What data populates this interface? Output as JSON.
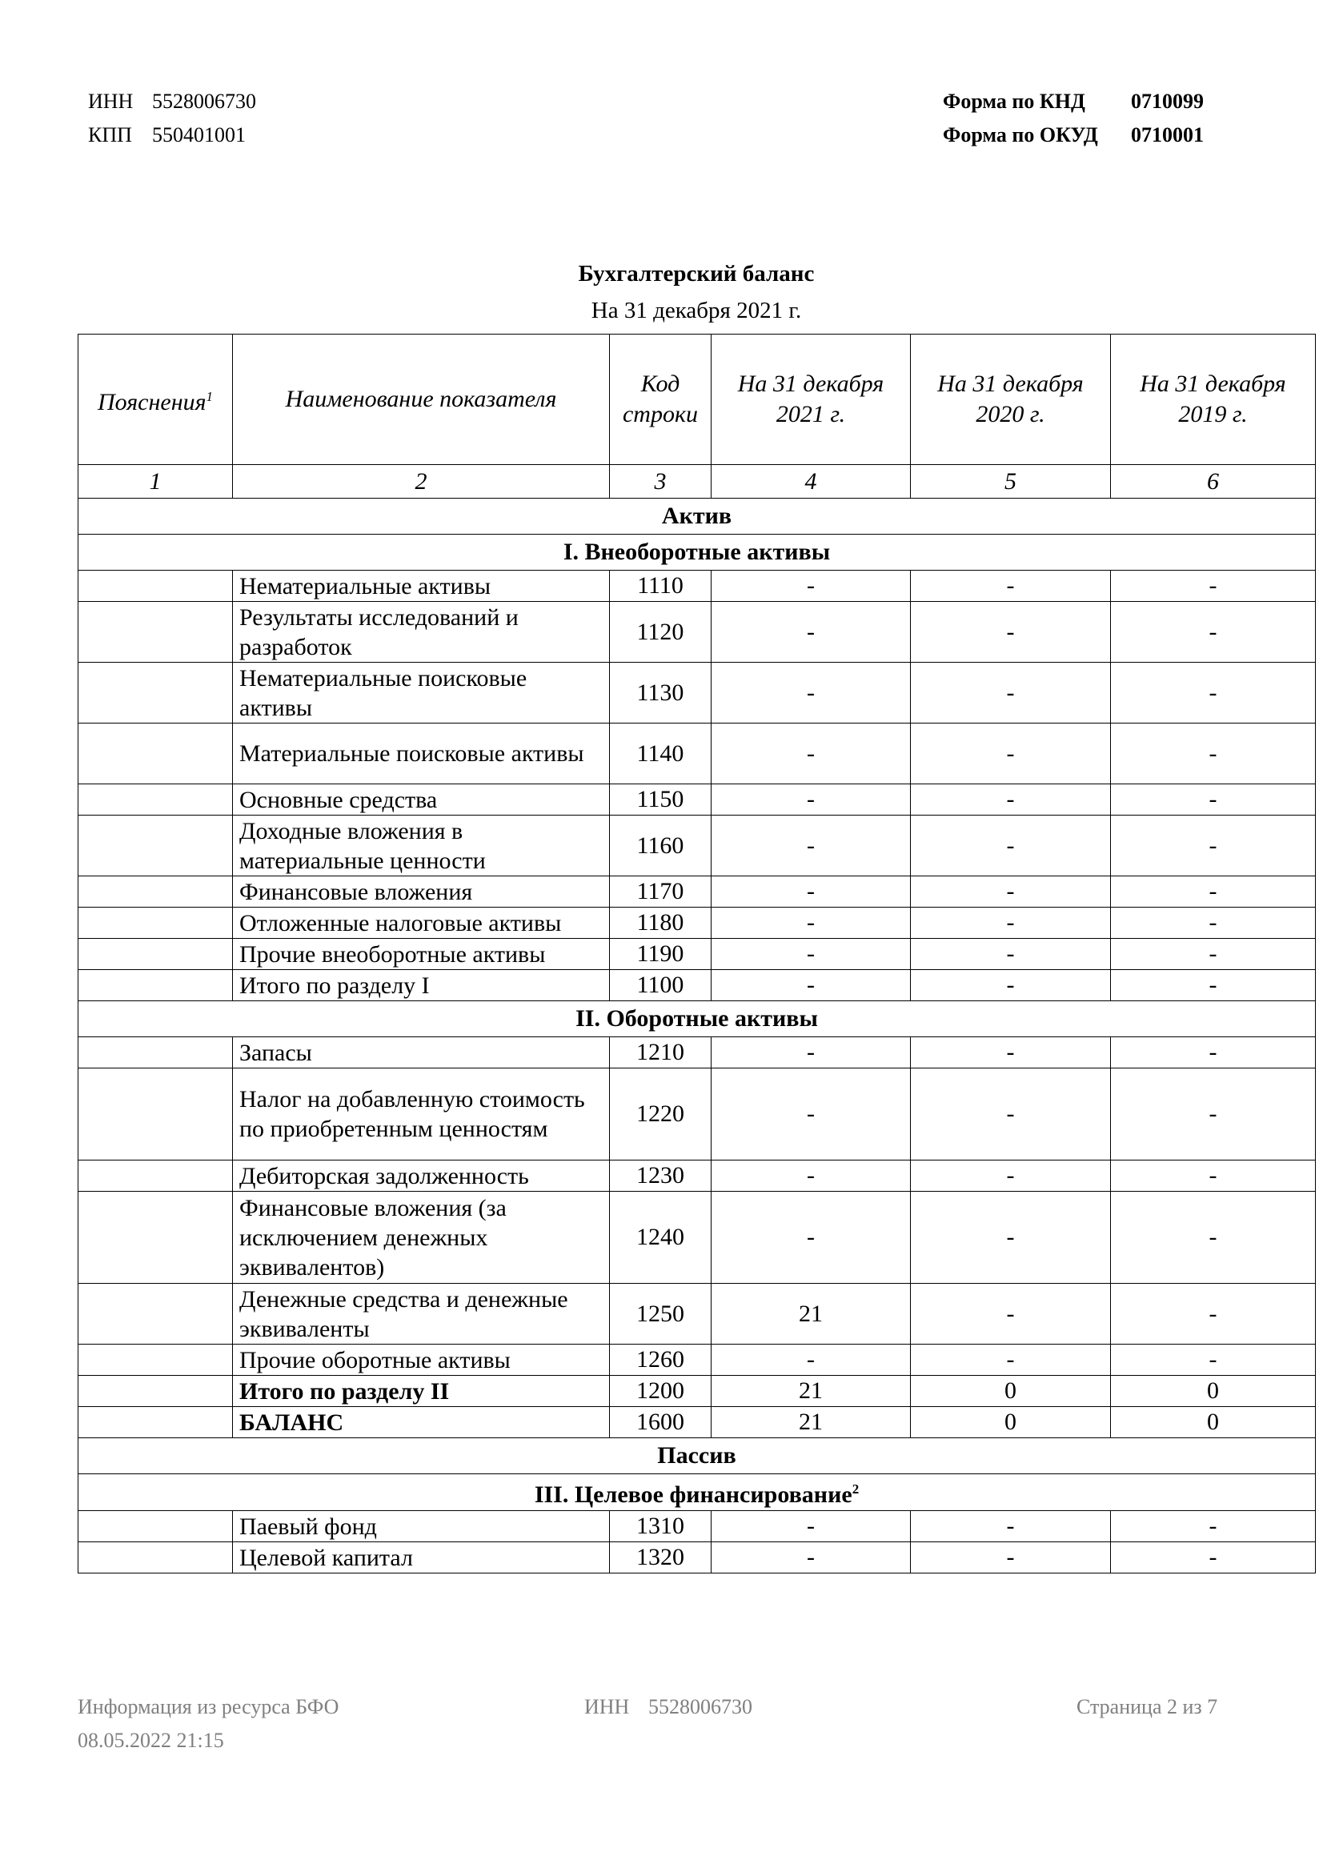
{
  "header": {
    "inn_label": "ИНН",
    "inn": "5528006730",
    "kpp_label": "КПП",
    "kpp": "550401001",
    "knd_label": "Форма по КНД",
    "knd": "0710099",
    "okud_label": "Форма по ОКУД",
    "okud": "0710001"
  },
  "title": "Бухгалтерский баланс",
  "subtitle": "На 31 декабря 2021 г.",
  "table": {
    "columns": [
      "Пояснения",
      "Наименование показателя",
      "Код строки",
      "На 31 декабря 2021 г.",
      "На 31 декабря 2020 г.",
      "На 31 декабря 2019 г."
    ],
    "footnote_mark": "1",
    "column_numbers": [
      "1",
      "2",
      "3",
      "4",
      "5",
      "6"
    ],
    "rows": [
      {
        "type": "section",
        "label": "Актив"
      },
      {
        "type": "section",
        "label": "I. Внеоборотные активы"
      },
      {
        "type": "row",
        "lines": 1,
        "name": "Нематериальные активы",
        "code": "1110",
        "v2021": "-",
        "v2020": "-",
        "v2019": "-"
      },
      {
        "type": "row",
        "lines": 2,
        "name": "Результаты исследований и разработок",
        "code": "1120",
        "v2021": "-",
        "v2020": "-",
        "v2019": "-"
      },
      {
        "type": "row",
        "lines": 2,
        "name": "Нематериальные поисковые активы",
        "code": "1130",
        "v2021": "-",
        "v2020": "-",
        "v2019": "-"
      },
      {
        "type": "row",
        "lines": 2,
        "name": "Материальные поисковые активы",
        "code": "1140",
        "v2021": "-",
        "v2020": "-",
        "v2019": "-"
      },
      {
        "type": "row",
        "lines": 1,
        "name": "Основные средства",
        "code": "1150",
        "v2021": "-",
        "v2020": "-",
        "v2019": "-"
      },
      {
        "type": "row",
        "lines": 2,
        "name": "Доходные вложения в материальные ценности",
        "code": "1160",
        "v2021": "-",
        "v2020": "-",
        "v2019": "-"
      },
      {
        "type": "row",
        "lines": 1,
        "name": "Финансовые вложения",
        "code": "1170",
        "v2021": "-",
        "v2020": "-",
        "v2019": "-"
      },
      {
        "type": "row",
        "lines": 1,
        "name": "Отложенные налоговые активы",
        "code": "1180",
        "v2021": "-",
        "v2020": "-",
        "v2019": "-"
      },
      {
        "type": "row",
        "lines": 1,
        "name": "Прочие внеоборотные активы",
        "code": "1190",
        "v2021": "-",
        "v2020": "-",
        "v2019": "-"
      },
      {
        "type": "row",
        "lines": 1,
        "name": "Итого по разделу I",
        "code": "1100",
        "v2021": "-",
        "v2020": "-",
        "v2019": "-"
      },
      {
        "type": "section",
        "label": "II. Оборотные активы"
      },
      {
        "type": "row",
        "lines": 1,
        "name": "Запасы",
        "code": "1210",
        "v2021": "-",
        "v2020": "-",
        "v2019": "-"
      },
      {
        "type": "row",
        "lines": 3,
        "name": "Налог на добавленную стоимость по приобретенным ценностям",
        "code": "1220",
        "v2021": "-",
        "v2020": "-",
        "v2019": "-"
      },
      {
        "type": "row",
        "lines": 1,
        "name": "Дебиторская задолженность",
        "code": "1230",
        "v2021": "-",
        "v2020": "-",
        "v2019": "-"
      },
      {
        "type": "row",
        "lines": 3,
        "name": "Финансовые вложения (за исключением денежных эквивалентов)",
        "code": "1240",
        "v2021": "-",
        "v2020": "-",
        "v2019": "-"
      },
      {
        "type": "row",
        "lines": 2,
        "name": "Денежные средства и денежные эквиваленты",
        "code": "1250",
        "v2021": "21",
        "v2020": "-",
        "v2019": "-"
      },
      {
        "type": "row",
        "lines": 1,
        "name": "Прочие оборотные активы",
        "code": "1260",
        "v2021": "-",
        "v2020": "-",
        "v2019": "-"
      },
      {
        "type": "row",
        "lines": 1,
        "bold": true,
        "name": "Итого по разделу II",
        "code": "1200",
        "v2021": "21",
        "v2020": "0",
        "v2019": "0"
      },
      {
        "type": "row",
        "lines": 1,
        "bold": true,
        "name": "БАЛАНС",
        "code": "1600",
        "v2021": "21",
        "v2020": "0",
        "v2019": "0"
      },
      {
        "type": "section",
        "label": "Пассив"
      },
      {
        "type": "section",
        "label": "III. Целевое финансирование",
        "sup": "2"
      },
      {
        "type": "row",
        "lines": 1,
        "name": "Паевый фонд",
        "code": "1310",
        "v2021": "-",
        "v2020": "-",
        "v2019": "-"
      },
      {
        "type": "row",
        "lines": 1,
        "name": "Целевой капитал",
        "code": "1320",
        "v2021": "-",
        "v2020": "-",
        "v2019": "-"
      }
    ]
  },
  "footer": {
    "source": "Информация из ресурса БФО",
    "datetime": "08.05.2022 21:15",
    "inn_label": "ИНН",
    "inn": "5528006730",
    "page": "Страница 2 из 7"
  }
}
